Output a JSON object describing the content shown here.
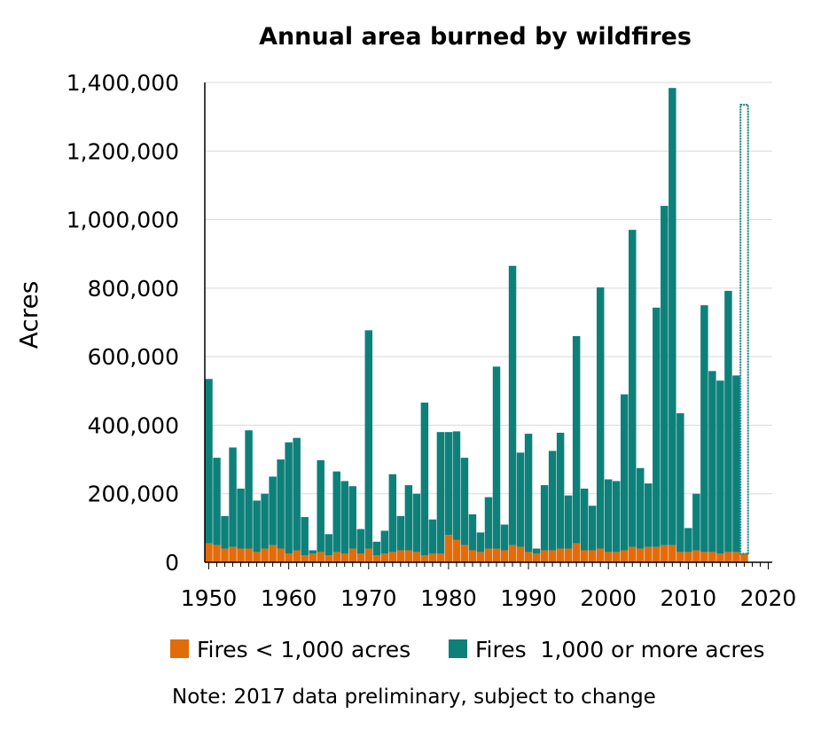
{
  "chart_data": {
    "type": "bar",
    "stacked": true,
    "title": "Annual area burned by wildfires",
    "xlabel": "",
    "ylabel": "Acres",
    "x_ticks": [
      "1950",
      "1960",
      "1970",
      "1980",
      "1990",
      "2000",
      "2010",
      "2020"
    ],
    "y_ticks": [
      "0",
      "200,000",
      "400,000",
      "600,000",
      "800,000",
      "1,000,000",
      "1,200,000",
      "1,400,000"
    ],
    "xlim": [
      1949.5,
      2020.5
    ],
    "ylim": [
      0,
      1400000
    ],
    "grid": true,
    "legend_position": "bottom",
    "colors": {
      "small": "#E36C0A",
      "large": "#0E807A",
      "grid": "#d9d9d9",
      "axis": "#000000"
    },
    "years": [
      1950,
      1951,
      1952,
      1953,
      1954,
      1955,
      1956,
      1957,
      1958,
      1959,
      1960,
      1961,
      1962,
      1963,
      1964,
      1965,
      1966,
      1967,
      1968,
      1969,
      1970,
      1971,
      1972,
      1973,
      1974,
      1975,
      1976,
      1977,
      1978,
      1979,
      1980,
      1981,
      1982,
      1983,
      1984,
      1985,
      1986,
      1987,
      1988,
      1989,
      1990,
      1991,
      1992,
      1993,
      1994,
      1995,
      1996,
      1997,
      1998,
      1999,
      2000,
      2001,
      2002,
      2003,
      2004,
      2005,
      2006,
      2007,
      2008,
      2009,
      2010,
      2011,
      2012,
      2013,
      2014,
      2015,
      2016,
      2017
    ],
    "series": [
      {
        "name": "Fires < 1,000 acres",
        "color": "#E36C0A",
        "values": [
          55000,
          50000,
          40000,
          45000,
          40000,
          40000,
          30000,
          40000,
          50000,
          40000,
          25000,
          35000,
          20000,
          25000,
          30000,
          20000,
          30000,
          25000,
          40000,
          25000,
          40000,
          20000,
          25000,
          30000,
          35000,
          35000,
          30000,
          20000,
          25000,
          25000,
          80000,
          65000,
          50000,
          35000,
          30000,
          40000,
          40000,
          35000,
          50000,
          45000,
          30000,
          25000,
          35000,
          35000,
          40000,
          40000,
          55000,
          35000,
          35000,
          40000,
          30000,
          30000,
          35000,
          45000,
          40000,
          45000,
          45000,
          50000,
          50000,
          30000,
          30000,
          35000,
          30000,
          30000,
          25000,
          30000,
          30000,
          25000
        ]
      },
      {
        "name": "Fires  1,000 or more acres",
        "color": "#0E807A",
        "values": [
          480000,
          255000,
          95000,
          290000,
          175000,
          345000,
          150000,
          160000,
          200000,
          260000,
          325000,
          328000,
          112000,
          10000,
          268000,
          62000,
          235000,
          212000,
          182000,
          72000,
          637000,
          40000,
          67000,
          227000,
          100000,
          190000,
          170000,
          446000,
          100000,
          355000,
          300000,
          317000,
          255000,
          105000,
          57000,
          150000,
          531000,
          75000,
          815000,
          275000,
          345000,
          15000,
          190000,
          290000,
          338000,
          155000,
          605000,
          180000,
          130000,
          762000,
          212000,
          207000,
          455000,
          925000,
          235000,
          185000,
          698000,
          990000,
          1334000,
          405000,
          70000,
          165000,
          720000,
          528000,
          505000,
          762000,
          515000,
          1310000
        ]
      }
    ],
    "annotations": [
      "Note: 2017 data preliminary, subject to change"
    ],
    "preliminary_years": [
      2017
    ]
  }
}
